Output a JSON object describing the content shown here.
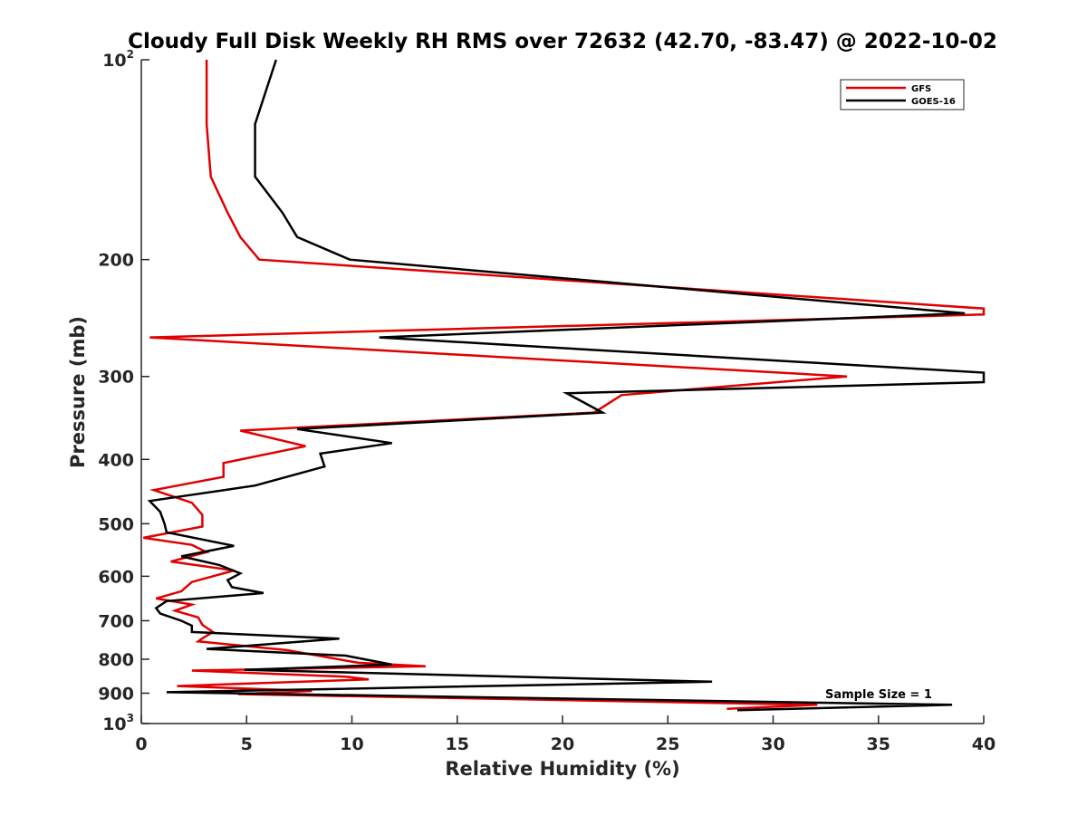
{
  "chart_data": {
    "type": "line",
    "title": "Cloudy Full Disk Weekly RH RMS over 72632 (42.70, -83.47) @ 2022-10-02",
    "xlabel": "Relative Humidity (%)",
    "ylabel": "Pressure (mb)",
    "xlim": [
      0,
      40
    ],
    "ylim": [
      100,
      1000
    ],
    "yscale": "log",
    "yreversed": true,
    "xticks": [
      0,
      5,
      10,
      15,
      20,
      25,
      30,
      35,
      40
    ],
    "xtick_labels": [
      "0",
      "5",
      "10",
      "15",
      "20",
      "25",
      "30",
      "35",
      "40"
    ],
    "yticks": [
      {
        "value": 100,
        "base": "10",
        "exp": "2"
      },
      {
        "value": 200,
        "base": "200",
        "exp": ""
      },
      {
        "value": 300,
        "base": "300",
        "exp": ""
      },
      {
        "value": 400,
        "base": "400",
        "exp": ""
      },
      {
        "value": 500,
        "base": "500",
        "exp": ""
      },
      {
        "value": 600,
        "base": "600",
        "exp": ""
      },
      {
        "value": 700,
        "base": "700",
        "exp": ""
      },
      {
        "value": 800,
        "base": "800",
        "exp": ""
      },
      {
        "value": 900,
        "base": "900",
        "exp": ""
      },
      {
        "value": 1000,
        "base": "10",
        "exp": "3"
      }
    ],
    "grid": false,
    "legend_position": "top-right",
    "annotation": "Sample Size = 1",
    "series": [
      {
        "name": "GFS",
        "color": "#e00000",
        "points": [
          [
            3.1,
            100
          ],
          [
            3.1,
            125
          ],
          [
            3.3,
            150
          ],
          [
            4.1,
            170
          ],
          [
            4.7,
            185
          ],
          [
            5.6,
            200
          ],
          [
            40,
            237
          ],
          [
            40,
            242
          ],
          [
            0.4,
            262
          ],
          [
            33.5,
            300
          ],
          [
            22.8,
            320
          ],
          [
            21.5,
            340
          ],
          [
            4.7,
            362
          ],
          [
            7.8,
            382
          ],
          [
            3.9,
            405
          ],
          [
            3.9,
            425
          ],
          [
            0.6,
            445
          ],
          [
            2.4,
            465
          ],
          [
            2.9,
            485
          ],
          [
            2.9,
            505
          ],
          [
            0.1,
            525
          ],
          [
            2.4,
            538
          ],
          [
            3.1,
            552
          ],
          [
            1.4,
            570
          ],
          [
            4.4,
            588
          ],
          [
            2.4,
            612
          ],
          [
            1.9,
            632
          ],
          [
            0.7,
            648
          ],
          [
            2.4,
            662
          ],
          [
            1.6,
            676
          ],
          [
            2.7,
            692
          ],
          [
            2.9,
            710
          ],
          [
            3.4,
            728
          ],
          [
            2.9,
            744
          ],
          [
            2.7,
            752
          ],
          [
            6.9,
            775
          ],
          [
            10.3,
            810
          ],
          [
            13.5,
            820
          ],
          [
            2.4,
            832
          ],
          [
            9.7,
            850
          ],
          [
            10.8,
            858
          ],
          [
            1.7,
            878
          ],
          [
            8.1,
            893
          ],
          [
            4.6,
            903
          ],
          [
            32.1,
            937
          ],
          [
            27.8,
            950
          ]
        ]
      },
      {
        "name": "GOES-16",
        "color": "#000000",
        "points": [
          [
            6.4,
            100
          ],
          [
            5.4,
            125
          ],
          [
            5.4,
            150
          ],
          [
            6.7,
            170
          ],
          [
            7.4,
            185
          ],
          [
            9.9,
            200
          ],
          [
            39.1,
            241
          ],
          [
            11.3,
            262
          ],
          [
            40,
            296
          ],
          [
            40,
            306
          ],
          [
            20.2,
            318
          ],
          [
            21.9,
            340
          ],
          [
            7.4,
            360
          ],
          [
            11.9,
            378
          ],
          [
            8.5,
            392
          ],
          [
            8.7,
            410
          ],
          [
            5.4,
            438
          ],
          [
            0.4,
            462
          ],
          [
            0.9,
            480
          ],
          [
            1.1,
            500
          ],
          [
            1.2,
            515
          ],
          [
            4.4,
            540
          ],
          [
            1.9,
            560
          ],
          [
            3.7,
            577
          ],
          [
            4.7,
            594
          ],
          [
            4.1,
            608
          ],
          [
            4.3,
            623
          ],
          [
            5.8,
            636
          ],
          [
            1.2,
            654
          ],
          [
            0.7,
            670
          ],
          [
            0.9,
            683
          ],
          [
            1.9,
            700
          ],
          [
            2.4,
            712
          ],
          [
            2.4,
            728
          ],
          [
            9.4,
            745
          ],
          [
            3.1,
            772
          ],
          [
            9.7,
            790
          ],
          [
            11.9,
            815
          ],
          [
            4.9,
            830
          ],
          [
            27.1,
            865
          ],
          [
            1.2,
            897
          ],
          [
            38.5,
            937
          ],
          [
            28.3,
            955
          ]
        ]
      }
    ]
  }
}
